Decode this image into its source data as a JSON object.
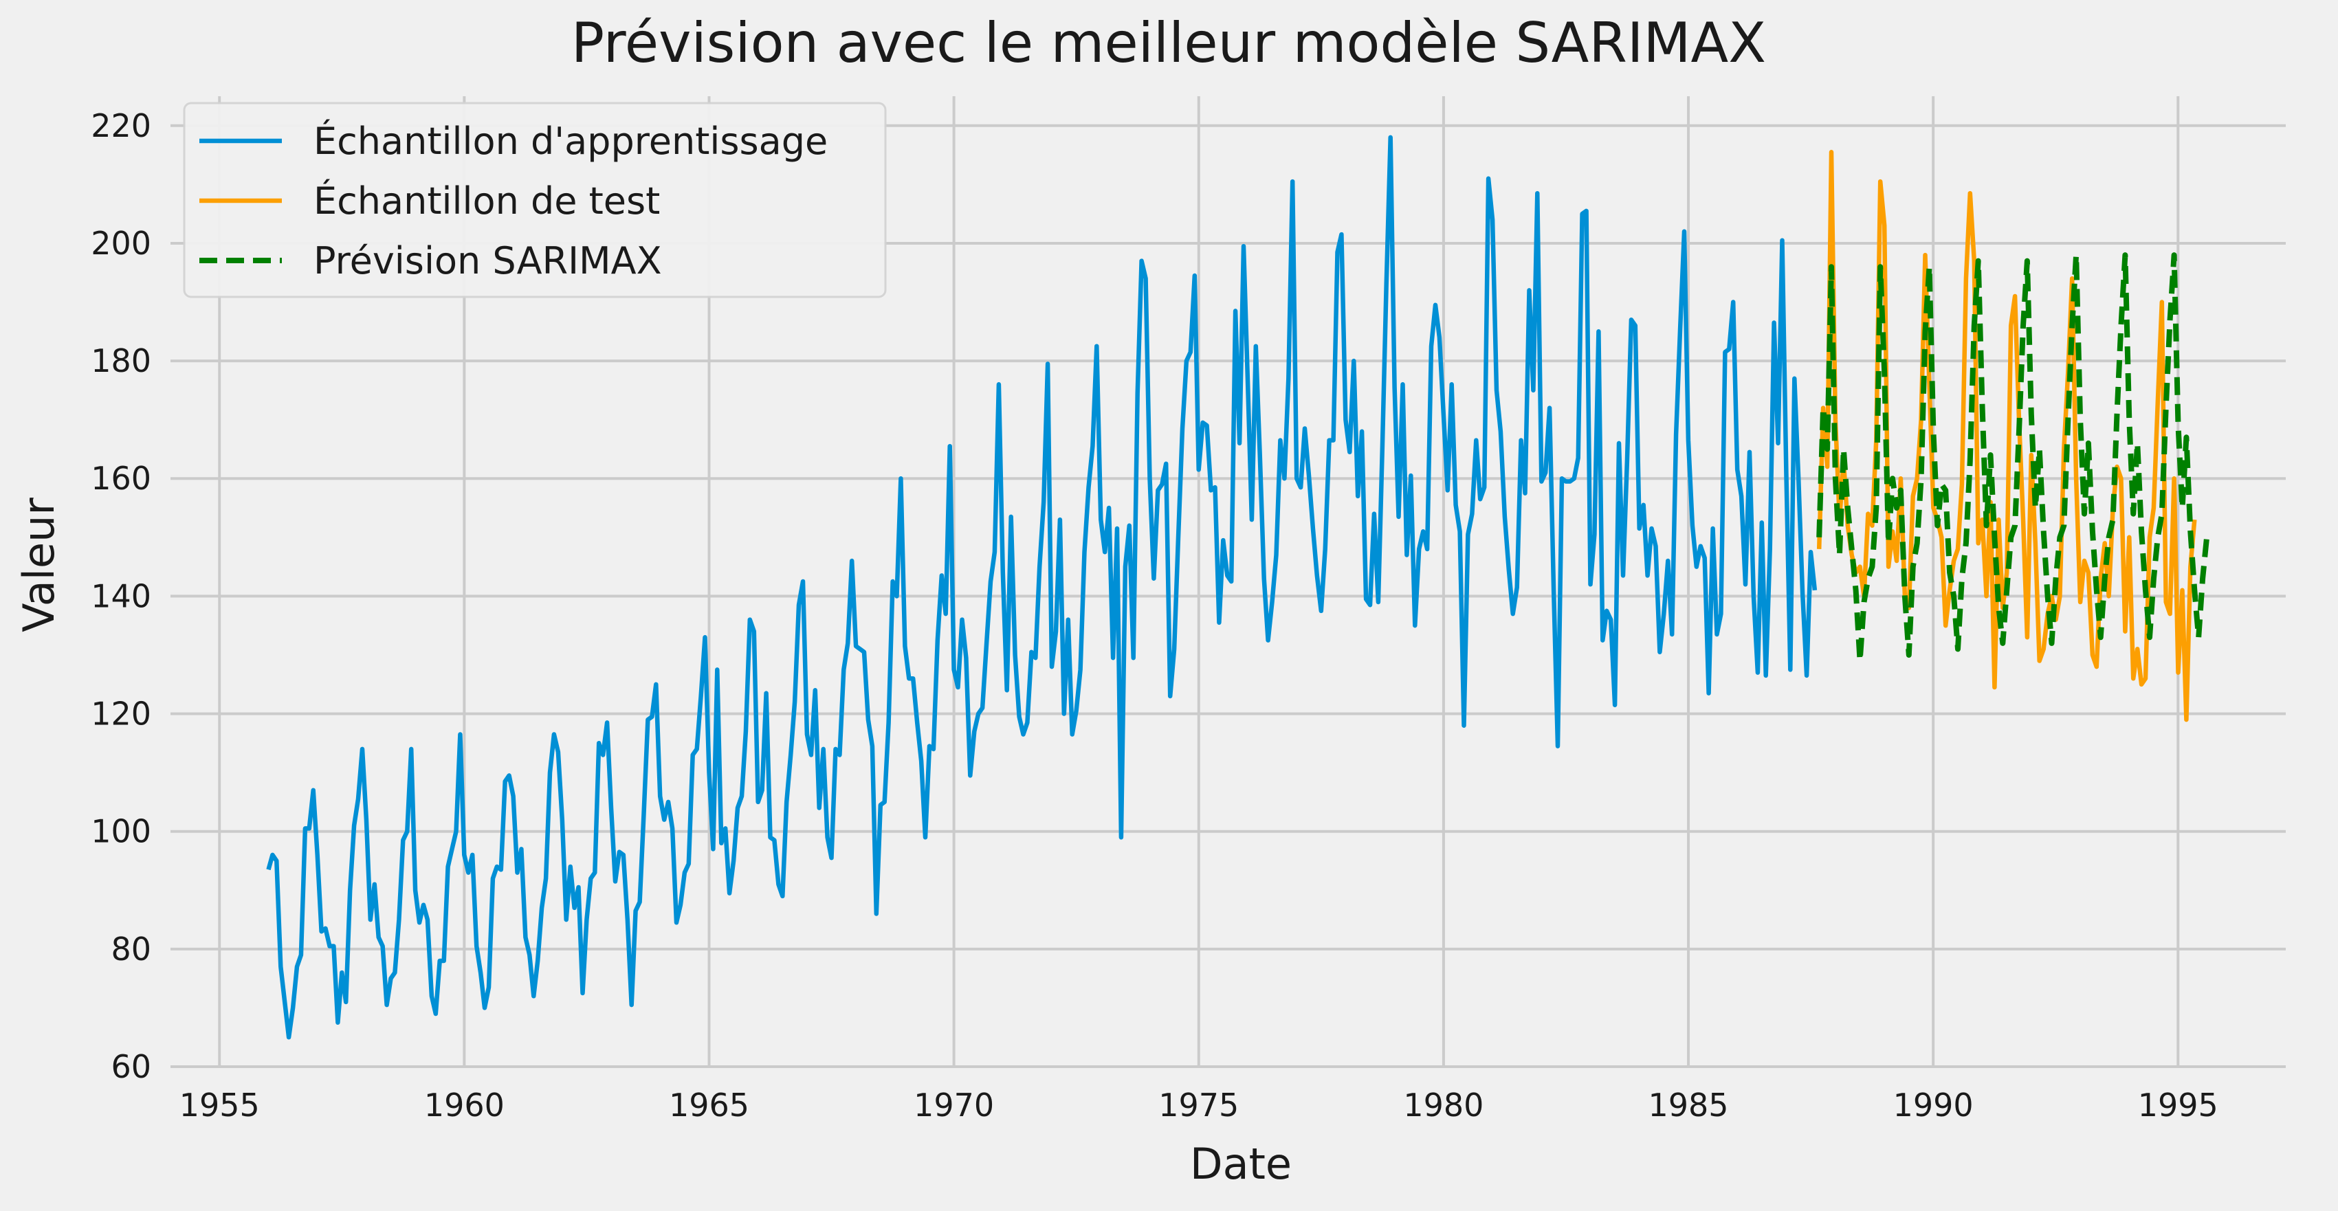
{
  "chart_data": {
    "type": "line",
    "title": "Prévision avec le meilleur modèle SARIMAX",
    "xlabel": "Date",
    "ylabel": "Valeur",
    "xlim": [
      1954.0,
      1997.2
    ],
    "ylim": [
      60,
      225
    ],
    "xticks": [
      1955,
      1960,
      1965,
      1970,
      1975,
      1980,
      1985,
      1990,
      1995
    ],
    "yticks": [
      60,
      80,
      100,
      120,
      140,
      160,
      180,
      200,
      220
    ],
    "grid": true,
    "legend_position": "top-left",
    "series": [
      {
        "name": "Échantillon d'apprentissage",
        "color": "#008fd5",
        "style": "solid",
        "x_start": 1956.0,
        "x_step": 0.08333,
        "values": [
          93.5,
          96,
          95,
          77,
          71,
          65,
          70,
          77,
          79,
          100.5,
          100.5,
          107,
          96,
          83,
          83.5,
          80.5,
          80.5,
          67.5,
          76,
          71,
          90,
          101,
          105.5,
          114,
          102,
          85,
          91,
          82,
          80.5,
          70.5,
          75,
          76,
          85,
          98.5,
          100,
          114,
          90,
          84.5,
          87.5,
          85,
          72,
          69,
          78,
          78,
          94,
          97,
          100,
          116.5,
          96,
          93,
          96,
          80.5,
          76,
          70,
          73.5,
          92,
          94,
          93.5,
          108.5,
          109.5,
          106,
          93,
          97,
          82,
          79,
          72,
          78,
          87,
          92,
          110,
          116.5,
          113.5,
          102,
          85,
          94,
          87,
          90.5,
          72.5,
          85,
          92,
          93,
          115,
          113,
          118.5,
          104,
          91.5,
          96.5,
          96,
          85,
          70.5,
          86.5,
          88,
          103,
          119,
          119.5,
          125,
          106,
          102,
          105,
          100.5,
          84.5,
          87.5,
          93,
          94.5,
          113,
          114,
          123,
          133,
          110,
          97,
          127.5,
          98,
          100.5,
          89.5,
          95,
          104,
          106,
          117,
          136,
          134,
          105,
          107,
          123.5,
          99,
          98.5,
          91,
          89,
          105,
          113,
          122,
          138.5,
          142.5,
          116.5,
          113,
          124,
          104,
          114,
          99,
          95.5,
          114,
          113,
          127.5,
          132,
          146,
          131.5,
          131,
          130.5,
          119,
          114.5,
          86,
          104.5,
          105,
          118.5,
          142.5,
          140,
          160,
          131.5,
          126,
          126,
          118.5,
          112,
          99,
          114.5,
          114,
          132.5,
          143.5,
          137,
          165.5,
          127.5,
          124.5,
          136,
          129.5,
          109.5,
          117,
          120,
          121,
          132,
          142.5,
          147.5,
          176,
          144,
          124,
          153.5,
          130,
          119.5,
          116.5,
          118.5,
          130.5,
          129.5,
          145,
          156,
          179.5,
          128,
          134,
          153,
          120,
          136,
          116.5,
          120.5,
          127.5,
          147.5,
          158.5,
          165.5,
          182.5,
          153,
          147.5,
          155,
          129.5,
          151.5,
          99,
          145,
          152,
          129.5,
          174.5,
          197,
          194,
          160,
          143,
          158,
          159,
          162.5,
          123,
          131,
          150,
          168.5,
          180,
          181.5,
          194.5,
          161.5,
          169.5,
          169,
          158,
          158.5,
          135.5,
          149.5,
          143.5,
          142.5,
          188.5,
          166,
          199.5,
          177,
          153,
          182.5,
          164,
          143,
          132.5,
          139,
          147,
          166.5,
          160,
          177,
          210.5,
          160,
          158.5,
          168.5,
          160.5,
          151.5,
          143.5,
          137.5,
          148,
          166.5,
          166.5,
          198.5,
          201.5,
          170,
          164.5,
          180,
          157,
          168,
          139.5,
          138.5,
          154,
          139,
          165,
          193,
          218,
          175.5,
          153.5,
          176,
          147,
          160.5,
          135,
          148,
          151,
          148,
          182.5,
          189.5,
          184,
          171,
          158,
          176,
          155.5,
          151,
          118,
          150.5,
          154,
          166.5,
          156.5,
          158.5,
          211,
          204,
          175,
          168,
          153.5,
          144.5,
          137,
          141.5,
          166.5,
          157.5,
          192,
          175,
          208.5,
          159.5,
          161,
          172,
          141,
          114.5,
          160,
          159.5,
          159.5,
          160,
          163.5,
          205,
          205.5,
          142,
          150.5,
          185,
          132.5,
          137.5,
          136,
          121.5,
          166,
          143.5,
          163,
          187,
          186,
          151.5,
          155.5,
          143.5,
          151.5,
          148.5,
          130.5,
          137,
          146,
          133.5,
          167.5,
          185.5,
          202,
          166.5,
          152,
          145,
          148.5,
          146.5,
          123.5,
          151.5,
          133.5,
          137,
          181.5,
          182,
          190,
          161.5,
          157,
          142,
          164.5,
          140,
          127,
          152.5,
          126.5,
          148,
          186.5,
          166,
          200.5,
          161,
          127.5,
          177,
          160,
          140.5,
          126.5,
          147.5,
          141
        ]
      },
      {
        "name": "Échantillon de test",
        "color": "#fc9f02",
        "style": "solid",
        "x_start": 1987.67,
        "x_step": 0.08333,
        "values": [
          148,
          172,
          162,
          215.5,
          170,
          153,
          163,
          152,
          147,
          144,
          145,
          140,
          154,
          152,
          166.5,
          210.5,
          203,
          145,
          151,
          146,
          160,
          140,
          138,
          157,
          160,
          170,
          198,
          176,
          155,
          153,
          150,
          135,
          141,
          146,
          148,
          159,
          194,
          208.5,
          197,
          149,
          153,
          140,
          156,
          124.5,
          153,
          138,
          144,
          186,
          191,
          170,
          153,
          133,
          164,
          149,
          129,
          131,
          137,
          140,
          136,
          140,
          165,
          178,
          194,
          160,
          139,
          146,
          144,
          130,
          128,
          143,
          149,
          140,
          155,
          162,
          160,
          134,
          150,
          126,
          131,
          125,
          126,
          150,
          155,
          173,
          190,
          139,
          137,
          160,
          127,
          141,
          119,
          145,
          153
        ]
      },
      {
        "name": "Prévision SARIMAX",
        "color": "#008000",
        "style": "dashed",
        "x_start": 1987.67,
        "x_step": 0.08333,
        "values": [
          150,
          172,
          165,
          196,
          160,
          147,
          165,
          155,
          148,
          141,
          129,
          139,
          143,
          145,
          155,
          196,
          178,
          149,
          160,
          155,
          158,
          140,
          130,
          145,
          149,
          160,
          185,
          196,
          168,
          152,
          159,
          158,
          144,
          140,
          131,
          143,
          149,
          163,
          186,
          197,
          172,
          152,
          164,
          150,
          138,
          132,
          141,
          150,
          152,
          168,
          186,
          197,
          171,
          155,
          165,
          151,
          140,
          132,
          143,
          150,
          152,
          170,
          186,
          198,
          170,
          154,
          166,
          151,
          141,
          133,
          143,
          150,
          153,
          171,
          186,
          198,
          170,
          154,
          166,
          151,
          141,
          133,
          143,
          150,
          154,
          172,
          187,
          198,
          169,
          155,
          167,
          151,
          141,
          133,
          143,
          150
        ]
      }
    ]
  }
}
